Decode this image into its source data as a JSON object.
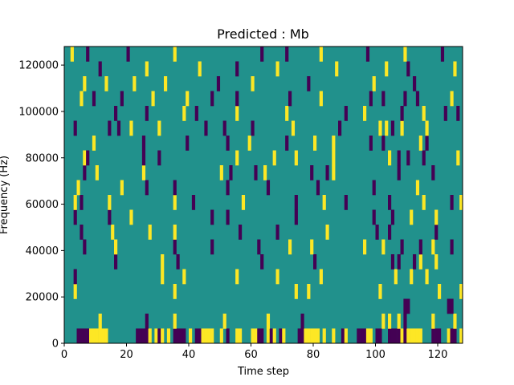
{
  "chart_data": {
    "type": "heatmap",
    "title": "Predicted : Mb",
    "xlabel": "Time step",
    "ylabel": "Frequency (Hz)",
    "xlim": [
      0,
      128
    ],
    "ylim": [
      0,
      128000
    ],
    "xticks": [
      0,
      20,
      40,
      60,
      80,
      100,
      120
    ],
    "yticks": [
      0,
      20000,
      40000,
      60000,
      80000,
      100000,
      120000
    ],
    "xtick_labels": [
      "0",
      "20",
      "40",
      "60",
      "80",
      "100",
      "120"
    ],
    "ytick_labels": [
      "0",
      "20000",
      "40000",
      "60000",
      "80000",
      "100000",
      "120000"
    ],
    "colormap": [
      "#440154",
      "#21918c",
      "#fde725"
    ],
    "background_value": 0,
    "grid": false,
    "legend": "none",
    "cells": [
      [
        4,
        0,
        -1
      ],
      [
        5,
        0,
        -1
      ],
      [
        6,
        0,
        -1
      ],
      [
        7,
        0,
        -1
      ],
      [
        8,
        0,
        1
      ],
      [
        9,
        0,
        1
      ],
      [
        10,
        0,
        1
      ],
      [
        11,
        0,
        1
      ],
      [
        12,
        0,
        1
      ],
      [
        13,
        0,
        1
      ],
      [
        23,
        0,
        -1
      ],
      [
        24,
        0,
        -1
      ],
      [
        25,
        0,
        -1
      ],
      [
        26,
        0,
        -1
      ],
      [
        27,
        0,
        1
      ],
      [
        29,
        0,
        1
      ],
      [
        30,
        0,
        -1
      ],
      [
        31,
        0,
        1
      ],
      [
        33,
        0,
        1
      ],
      [
        35,
        0,
        -1
      ],
      [
        36,
        0,
        -1
      ],
      [
        37,
        0,
        -1
      ],
      [
        38,
        0,
        -1
      ],
      [
        40,
        0,
        1
      ],
      [
        42,
        0,
        -1
      ],
      [
        43,
        0,
        -1
      ],
      [
        44,
        0,
        1
      ],
      [
        45,
        0,
        1
      ],
      [
        46,
        0,
        1
      ],
      [
        47,
        0,
        1
      ],
      [
        50,
        0,
        1
      ],
      [
        52,
        0,
        -1
      ],
      [
        55,
        0,
        1
      ],
      [
        56,
        0,
        1
      ],
      [
        60,
        0,
        1
      ],
      [
        61,
        0,
        1
      ],
      [
        62,
        0,
        -1
      ],
      [
        63,
        0,
        -1
      ],
      [
        65,
        0,
        1
      ],
      [
        66,
        0,
        -1
      ],
      [
        67,
        0,
        1
      ],
      [
        69,
        0,
        -1
      ],
      [
        70,
        0,
        1
      ],
      [
        75,
        0,
        -1
      ],
      [
        76,
        0,
        -1
      ],
      [
        77,
        0,
        1
      ],
      [
        78,
        0,
        1
      ],
      [
        79,
        0,
        1
      ],
      [
        80,
        0,
        1
      ],
      [
        81,
        0,
        1
      ],
      [
        83,
        0,
        1
      ],
      [
        86,
        0,
        1
      ],
      [
        89,
        0,
        -1
      ],
      [
        90,
        0,
        1
      ],
      [
        94,
        0,
        -1
      ],
      [
        95,
        0,
        -1
      ],
      [
        96,
        0,
        -1
      ],
      [
        97,
        0,
        1
      ],
      [
        98,
        0,
        1
      ],
      [
        100,
        0,
        -1
      ],
      [
        101,
        0,
        -1
      ],
      [
        104,
        0,
        -1
      ],
      [
        105,
        0,
        -1
      ],
      [
        106,
        0,
        -1
      ],
      [
        107,
        0,
        -1
      ],
      [
        108,
        0,
        1
      ],
      [
        109,
        0,
        -1
      ],
      [
        110,
        0,
        1
      ],
      [
        111,
        0,
        1
      ],
      [
        112,
        0,
        1
      ],
      [
        113,
        0,
        1
      ],
      [
        114,
        0,
        1
      ],
      [
        118,
        0,
        -1
      ],
      [
        119,
        0,
        -1
      ],
      [
        120,
        0,
        -1
      ],
      [
        123,
        0,
        1
      ],
      [
        124,
        0,
        -1
      ],
      [
        125,
        0,
        -1
      ],
      [
        127,
        0,
        1
      ],
      [
        11,
        1,
        1
      ],
      [
        26,
        1,
        -1
      ],
      [
        35,
        1,
        1
      ],
      [
        51,
        1,
        1
      ],
      [
        65,
        1,
        1
      ],
      [
        76,
        1,
        -1
      ],
      [
        102,
        1,
        1
      ],
      [
        104,
        1,
        1
      ],
      [
        107,
        1,
        1
      ],
      [
        109,
        1,
        -1
      ],
      [
        118,
        1,
        1
      ],
      [
        125,
        1,
        1
      ],
      [
        109,
        2,
        -1
      ],
      [
        110,
        2,
        -1
      ],
      [
        123,
        2,
        -1
      ],
      [
        124,
        2,
        -1
      ],
      [
        3,
        3,
        1
      ],
      [
        35,
        3,
        1
      ],
      [
        74,
        3,
        1
      ],
      [
        78,
        3,
        1
      ],
      [
        101,
        3,
        1
      ],
      [
        120,
        3,
        1
      ],
      [
        127,
        3,
        1
      ],
      [
        3,
        4,
        -1
      ],
      [
        31,
        4,
        1
      ],
      [
        38,
        4,
        1
      ],
      [
        55,
        4,
        1
      ],
      [
        68,
        4,
        1
      ],
      [
        82,
        4,
        1
      ],
      [
        106,
        4,
        1
      ],
      [
        111,
        4,
        1
      ],
      [
        116,
        4,
        1
      ],
      [
        16,
        5,
        -1
      ],
      [
        31,
        5,
        1
      ],
      [
        36,
        5,
        -1
      ],
      [
        63,
        5,
        -1
      ],
      [
        80,
        5,
        -1
      ],
      [
        105,
        5,
        -1
      ],
      [
        107,
        5,
        -1
      ],
      [
        112,
        5,
        -1
      ],
      [
        114,
        5,
        1
      ],
      [
        119,
        5,
        1
      ],
      [
        6,
        6,
        -1
      ],
      [
        16,
        6,
        1
      ],
      [
        35,
        6,
        -1
      ],
      [
        47,
        6,
        -1
      ],
      [
        62,
        6,
        -1
      ],
      [
        72,
        6,
        1
      ],
      [
        79,
        6,
        1
      ],
      [
        96,
        6,
        1
      ],
      [
        102,
        6,
        1
      ],
      [
        108,
        6,
        -1
      ],
      [
        114,
        6,
        -1
      ],
      [
        118,
        6,
        1
      ],
      [
        124,
        6,
        -1
      ],
      [
        5,
        7,
        -1
      ],
      [
        15,
        7,
        1
      ],
      [
        27,
        7,
        1
      ],
      [
        35,
        7,
        1
      ],
      [
        56,
        7,
        -1
      ],
      [
        68,
        7,
        -1
      ],
      [
        84,
        7,
        1
      ],
      [
        100,
        7,
        -1
      ],
      [
        104,
        7,
        -1
      ],
      [
        119,
        7,
        -1
      ],
      [
        3,
        8,
        -1
      ],
      [
        14,
        8,
        -1
      ],
      [
        21,
        8,
        1
      ],
      [
        47,
        8,
        -1
      ],
      [
        52,
        8,
        -1
      ],
      [
        74,
        8,
        -1
      ],
      [
        99,
        8,
        -1
      ],
      [
        105,
        8,
        -1
      ],
      [
        111,
        8,
        1
      ],
      [
        119,
        8,
        1
      ],
      [
        3,
        9,
        1
      ],
      [
        5,
        9,
        -1
      ],
      [
        14,
        9,
        1
      ],
      [
        35,
        9,
        1
      ],
      [
        41,
        9,
        -1
      ],
      [
        57,
        9,
        1
      ],
      [
        74,
        9,
        -1
      ],
      [
        83,
        9,
        1
      ],
      [
        90,
        9,
        -1
      ],
      [
        104,
        9,
        -1
      ],
      [
        115,
        9,
        1
      ],
      [
        124,
        9,
        -1
      ],
      [
        127,
        9,
        1
      ],
      [
        4,
        10,
        1
      ],
      [
        18,
        10,
        1
      ],
      [
        26,
        10,
        -1
      ],
      [
        35,
        10,
        -1
      ],
      [
        52,
        10,
        -1
      ],
      [
        65,
        10,
        -1
      ],
      [
        81,
        10,
        -1
      ],
      [
        99,
        10,
        -1
      ],
      [
        113,
        10,
        1
      ],
      [
        6,
        11,
        -1
      ],
      [
        10,
        11,
        1
      ],
      [
        25,
        11,
        1
      ],
      [
        50,
        11,
        1
      ],
      [
        53,
        11,
        -1
      ],
      [
        61,
        11,
        -1
      ],
      [
        64,
        11,
        1
      ],
      [
        79,
        11,
        -1
      ],
      [
        84,
        11,
        -1
      ],
      [
        86,
        11,
        1
      ],
      [
        107,
        11,
        -1
      ],
      [
        118,
        11,
        -1
      ],
      [
        6,
        12,
        1
      ],
      [
        7,
        12,
        -1
      ],
      [
        25,
        12,
        -1
      ],
      [
        30,
        12,
        -1
      ],
      [
        55,
        12,
        1
      ],
      [
        67,
        12,
        1
      ],
      [
        74,
        12,
        1
      ],
      [
        86,
        12,
        1
      ],
      [
        104,
        12,
        1
      ],
      [
        107,
        12,
        -1
      ],
      [
        110,
        12,
        -1
      ],
      [
        115,
        12,
        -1
      ],
      [
        126,
        12,
        1
      ],
      [
        9,
        13,
        1
      ],
      [
        25,
        13,
        -1
      ],
      [
        39,
        13,
        -1
      ],
      [
        52,
        13,
        -1
      ],
      [
        59,
        13,
        1
      ],
      [
        71,
        13,
        -1
      ],
      [
        80,
        13,
        1
      ],
      [
        86,
        13,
        1
      ],
      [
        98,
        13,
        -1
      ],
      [
        102,
        13,
        -1
      ],
      [
        114,
        13,
        1
      ],
      [
        116,
        13,
        -1
      ],
      [
        3,
        14,
        -1
      ],
      [
        14,
        14,
        -1
      ],
      [
        17,
        14,
        -1
      ],
      [
        21,
        14,
        1
      ],
      [
        30,
        14,
        1
      ],
      [
        45,
        14,
        -1
      ],
      [
        51,
        14,
        -1
      ],
      [
        60,
        14,
        -1
      ],
      [
        73,
        14,
        1
      ],
      [
        88,
        14,
        -1
      ],
      [
        101,
        14,
        1
      ],
      [
        103,
        14,
        1
      ],
      [
        105,
        14,
        -1
      ],
      [
        108,
        14,
        1
      ],
      [
        116,
        14,
        1
      ],
      [
        16,
        15,
        -1
      ],
      [
        26,
        15,
        -1
      ],
      [
        38,
        15,
        1
      ],
      [
        42,
        15,
        -1
      ],
      [
        55,
        15,
        1
      ],
      [
        71,
        15,
        1
      ],
      [
        90,
        15,
        -1
      ],
      [
        96,
        15,
        1
      ],
      [
        108,
        15,
        -1
      ],
      [
        115,
        15,
        1
      ],
      [
        122,
        15,
        -1
      ],
      [
        126,
        15,
        -1
      ],
      [
        5,
        16,
        1
      ],
      [
        9,
        16,
        -1
      ],
      [
        18,
        16,
        -1
      ],
      [
        28,
        16,
        1
      ],
      [
        39,
        16,
        1
      ],
      [
        47,
        16,
        -1
      ],
      [
        55,
        16,
        -1
      ],
      [
        72,
        16,
        -1
      ],
      [
        82,
        16,
        1
      ],
      [
        98,
        16,
        -1
      ],
      [
        102,
        16,
        -1
      ],
      [
        109,
        16,
        -1
      ],
      [
        113,
        16,
        -1
      ],
      [
        124,
        16,
        1
      ],
      [
        6,
        17,
        1
      ],
      [
        13,
        17,
        1
      ],
      [
        22,
        17,
        1
      ],
      [
        32,
        17,
        1
      ],
      [
        49,
        17,
        -1
      ],
      [
        60,
        17,
        1
      ],
      [
        78,
        17,
        -1
      ],
      [
        99,
        17,
        1
      ],
      [
        112,
        17,
        -1
      ],
      [
        11,
        18,
        -1
      ],
      [
        26,
        18,
        1
      ],
      [
        43,
        18,
        1
      ],
      [
        55,
        18,
        -1
      ],
      [
        68,
        18,
        1
      ],
      [
        87,
        18,
        1
      ],
      [
        103,
        18,
        1
      ],
      [
        110,
        18,
        -1
      ],
      [
        125,
        18,
        1
      ],
      [
        2,
        19,
        1
      ],
      [
        7,
        19,
        -1
      ],
      [
        20,
        19,
        -1
      ],
      [
        35,
        19,
        1
      ],
      [
        63,
        19,
        -1
      ],
      [
        71,
        19,
        -1
      ],
      [
        82,
        19,
        1
      ],
      [
        97,
        19,
        -1
      ],
      [
        109,
        19,
        1
      ],
      [
        121,
        19,
        -1
      ]
    ]
  }
}
